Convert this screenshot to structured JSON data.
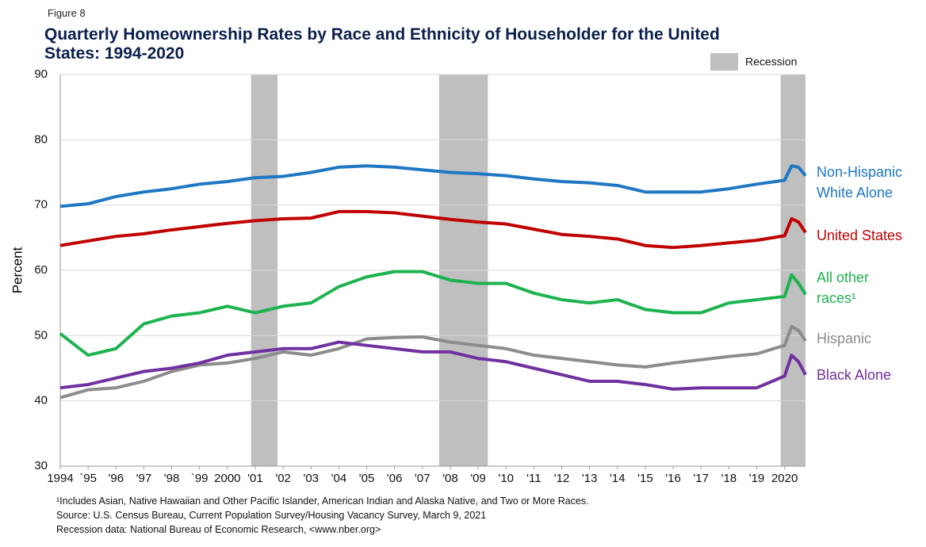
{
  "chart_data": {
    "type": "line",
    "figure_label": "Figure 8",
    "title": "Quarterly Homeownership Rates by Race and Ethnicity of Householder for the United States: 1994-2020",
    "y_label": "Percent",
    "recession_label": "Recession",
    "recession_color": "#bfbfbf",
    "recessions": [
      [
        2000.85,
        2001.8
      ],
      [
        2007.6,
        2009.35
      ],
      [
        2019.86,
        2020.75
      ]
    ],
    "x": [
      1994,
      1995,
      1996,
      1997,
      1998,
      1999,
      2000,
      2001,
      2002,
      2003,
      2004,
      2005,
      2006,
      2007,
      2008,
      2009,
      2010,
      2011,
      2012,
      2013,
      2014,
      2015,
      2016,
      2017,
      2018,
      2019,
      2020,
      2020.25,
      2020.5,
      2020.75
    ],
    "xlim": [
      1994,
      2020.75
    ],
    "xticks": [
      {
        "value": 1994,
        "label": "1994"
      },
      {
        "value": 1995,
        "label": "`95"
      },
      {
        "value": 1996,
        "label": "'96"
      },
      {
        "value": 1997,
        "label": "'97"
      },
      {
        "value": 1998,
        "label": "'98"
      },
      {
        "value": 1999,
        "label": "`99"
      },
      {
        "value": 2000,
        "label": "2000"
      },
      {
        "value": 2001,
        "label": "'01"
      },
      {
        "value": 2002,
        "label": "'02"
      },
      {
        "value": 2003,
        "label": "'03"
      },
      {
        "value": 2004,
        "label": "'04"
      },
      {
        "value": 2005,
        "label": "'05"
      },
      {
        "value": 2006,
        "label": "'06"
      },
      {
        "value": 2007,
        "label": "'07"
      },
      {
        "value": 2008,
        "label": "'08"
      },
      {
        "value": 2009,
        "label": "'09"
      },
      {
        "value": 2010,
        "label": "'10"
      },
      {
        "value": 2011,
        "label": "'11"
      },
      {
        "value": 2012,
        "label": "'12"
      },
      {
        "value": 2013,
        "label": "'13"
      },
      {
        "value": 2014,
        "label": "'14"
      },
      {
        "value": 2015,
        "label": "'15"
      },
      {
        "value": 2016,
        "label": "'16"
      },
      {
        "value": 2017,
        "label": "'17"
      },
      {
        "value": 2018,
        "label": "'18"
      },
      {
        "value": 2019,
        "label": "'19"
      },
      {
        "value": 2020,
        "label": "2020"
      }
    ],
    "ylim": [
      30,
      90
    ],
    "yticks": [
      30,
      40,
      50,
      60,
      70,
      80,
      90
    ],
    "grid": true,
    "series": [
      {
        "name": "Non-Hispanic White Alone",
        "color": "#1f77c4",
        "values": [
          69.8,
          70.2,
          71.3,
          72.0,
          72.5,
          73.2,
          73.6,
          74.2,
          74.4,
          75.0,
          75.8,
          76.0,
          75.8,
          75.4,
          75.0,
          74.8,
          74.5,
          74.0,
          73.6,
          73.4,
          73.0,
          72.0,
          72.0,
          72.0,
          72.5,
          73.2,
          73.8,
          76.0,
          75.8,
          74.5
        ]
      },
      {
        "name": "United States",
        "color": "#c00000",
        "values": [
          63.8,
          64.5,
          65.2,
          65.6,
          66.2,
          66.7,
          67.2,
          67.6,
          67.9,
          68.0,
          69.0,
          69.0,
          68.8,
          68.3,
          67.8,
          67.4,
          67.1,
          66.3,
          65.5,
          65.2,
          64.8,
          63.8,
          63.5,
          63.8,
          64.2,
          64.6,
          65.3,
          67.9,
          67.4,
          65.8
        ]
      },
      {
        "name": "All other races¹",
        "color": "#1db34f",
        "values": [
          50.3,
          47.0,
          48.0,
          51.8,
          53.0,
          53.5,
          54.5,
          53.5,
          54.5,
          55.0,
          57.5,
          59.0,
          59.8,
          59.8,
          58.5,
          58.0,
          58.0,
          56.5,
          55.5,
          55.0,
          55.5,
          54.0,
          53.5,
          53.5,
          55.0,
          55.5,
          56.0,
          59.3,
          58.0,
          56.3
        ]
      },
      {
        "name": "Hispanic",
        "color": "#8c8c8c",
        "values": [
          40.5,
          41.7,
          42.0,
          43.0,
          44.5,
          45.5,
          45.8,
          46.5,
          47.5,
          47.0,
          48.0,
          49.5,
          49.7,
          49.8,
          49.0,
          48.5,
          48.0,
          47.0,
          46.5,
          46.0,
          45.5,
          45.2,
          45.8,
          46.3,
          46.8,
          47.2,
          48.5,
          51.4,
          50.8,
          49.2
        ]
      },
      {
        "name": "Black Alone",
        "color": "#7030a0",
        "values": [
          42.0,
          42.5,
          43.5,
          44.5,
          45.0,
          45.8,
          47.0,
          47.5,
          48.0,
          48.0,
          49.0,
          48.5,
          48.0,
          47.5,
          47.5,
          46.5,
          46.0,
          45.0,
          44.0,
          43.0,
          43.0,
          42.5,
          41.8,
          42.0,
          42.0,
          42.0,
          43.8,
          47.0,
          46.0,
          44.0
        ]
      }
    ],
    "notes": [
      "¹Includes Asian, Native Hawaiian and Other Pacific Islander, American Indian and Alaska Native, and Two or More Races.",
      "Source: U.S. Census Bureau, Current Population Survey/Housing Vacancy Survey, March 9, 2021",
      "Recession data: National Bureau of Economic Research, <www.nber.org>"
    ]
  }
}
